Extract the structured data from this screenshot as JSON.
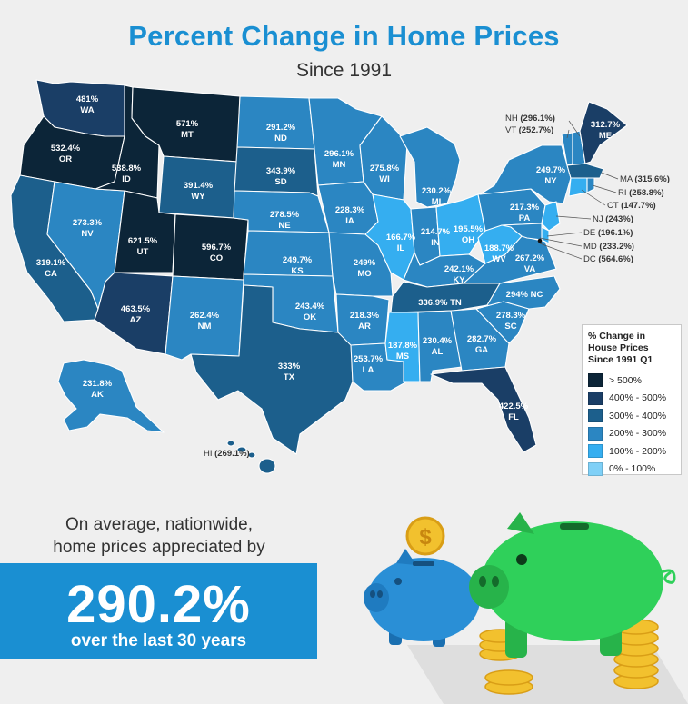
{
  "header": {
    "title": "Percent Change in Home Prices",
    "subtitle": "Since 1991"
  },
  "colors": {
    "over500": "#0c2538",
    "400to500": "#1a3e66",
    "300to400": "#1c5f8c",
    "200to300": "#2b86c2",
    "100to200": "#35aef0",
    "0to100": "#7fd0f7",
    "accent": "#1a8fd2"
  },
  "states": {
    "WA": {
      "value": "481%",
      "abbr": "WA"
    },
    "OR": {
      "value": "532.4%",
      "abbr": "OR"
    },
    "CA": {
      "value": "319.1%",
      "abbr": "CA"
    },
    "NV": {
      "value": "273.3%",
      "abbr": "NV"
    },
    "ID": {
      "value": "538.8%",
      "abbr": "ID"
    },
    "MT": {
      "value": "571%",
      "abbr": "MT"
    },
    "WY": {
      "value": "391.4%",
      "abbr": "WY"
    },
    "UT": {
      "value": "621.5%",
      "abbr": "UT"
    },
    "CO": {
      "value": "596.7%",
      "abbr": "CO"
    },
    "AZ": {
      "value": "463.5%",
      "abbr": "AZ"
    },
    "NM": {
      "value": "262.4%",
      "abbr": "NM"
    },
    "ND": {
      "value": "291.2%",
      "abbr": "ND"
    },
    "SD": {
      "value": "343.9%",
      "abbr": "SD"
    },
    "NE": {
      "value": "278.5%",
      "abbr": "NE"
    },
    "KS": {
      "value": "249.7%",
      "abbr": "KS"
    },
    "OK": {
      "value": "243.4%",
      "abbr": "OK"
    },
    "TX": {
      "value": "333%",
      "abbr": "TX"
    },
    "MN": {
      "value": "296.1%",
      "abbr": "MN"
    },
    "IA": {
      "value": "228.3%",
      "abbr": "IA"
    },
    "MO": {
      "value": "249%",
      "abbr": "MO"
    },
    "AR": {
      "value": "218.3%",
      "abbr": "AR"
    },
    "LA": {
      "value": "253.7%",
      "abbr": "LA"
    },
    "WI": {
      "value": "275.8%",
      "abbr": "WI"
    },
    "IL": {
      "value": "166.7%",
      "abbr": "IL"
    },
    "MS": {
      "value": "187.8%",
      "abbr": "MS"
    },
    "MI": {
      "value": "230.2%",
      "abbr": "MI"
    },
    "IN": {
      "value": "214.7%",
      "abbr": "IN"
    },
    "OH": {
      "value": "195.5%",
      "abbr": "OH"
    },
    "KY": {
      "value": "242.1%",
      "abbr": "KY"
    },
    "TN": {
      "value": "336.9%",
      "abbr": "TN"
    },
    "AL": {
      "value": "230.4%",
      "abbr": "AL"
    },
    "GA": {
      "value": "282.7%",
      "abbr": "GA"
    },
    "FL": {
      "value": "422.5%",
      "abbr": "FL"
    },
    "SC": {
      "value": "278.3%",
      "abbr": "SC"
    },
    "NC": {
      "value": "294%",
      "abbr": "NC"
    },
    "VA": {
      "value": "267.2%",
      "abbr": "VA"
    },
    "WV": {
      "value": "188.7%",
      "abbr": "WV"
    },
    "PA": {
      "value": "217.3%",
      "abbr": "PA"
    },
    "NY": {
      "value": "249.7%",
      "abbr": "NY"
    },
    "ME": {
      "value": "312.7%",
      "abbr": "ME"
    },
    "AK": {
      "value": "231.8%",
      "abbr": "AK"
    },
    "HI": {
      "value": "(269.1%)",
      "abbr": "HI"
    },
    "NH": {
      "value": "(296.1%)",
      "abbr": "NH"
    },
    "VT": {
      "value": "(252.7%)",
      "abbr": "VT"
    },
    "MA": {
      "value": "(315.6%)",
      "abbr": "MA"
    },
    "RI": {
      "value": "(258.8%)",
      "abbr": "RI"
    },
    "CT": {
      "value": "(147.7%)",
      "abbr": "CT"
    },
    "NJ": {
      "value": "(243%)",
      "abbr": "NJ"
    },
    "DE": {
      "value": "(196.1%)",
      "abbr": "DE"
    },
    "MD": {
      "value": "(233.2%)",
      "abbr": "MD"
    },
    "DC": {
      "value": "(564.6%)",
      "abbr": "DC"
    }
  },
  "legend": {
    "title_line1": "% Change in",
    "title_line2": "House Prices",
    "title_line3": "Since 1991 Q1",
    "items": [
      {
        "label": "> 500%",
        "color": "#0c2538"
      },
      {
        "label": "400% - 500%",
        "color": "#1a3e66"
      },
      {
        "label": "300% - 400%",
        "color": "#1c5f8c"
      },
      {
        "label": "200% - 300%",
        "color": "#2b86c2"
      },
      {
        "label": "100% - 200%",
        "color": "#35aef0"
      },
      {
        "label": "0% - 100%",
        "color": "#7fd0f7"
      }
    ]
  },
  "summary": {
    "line1": "On average, nationwide,",
    "line2": "home prices appreciated by",
    "value": "290.2%",
    "caption": "over the last 30 years"
  },
  "illustration": {
    "coin_symbol": "$"
  }
}
